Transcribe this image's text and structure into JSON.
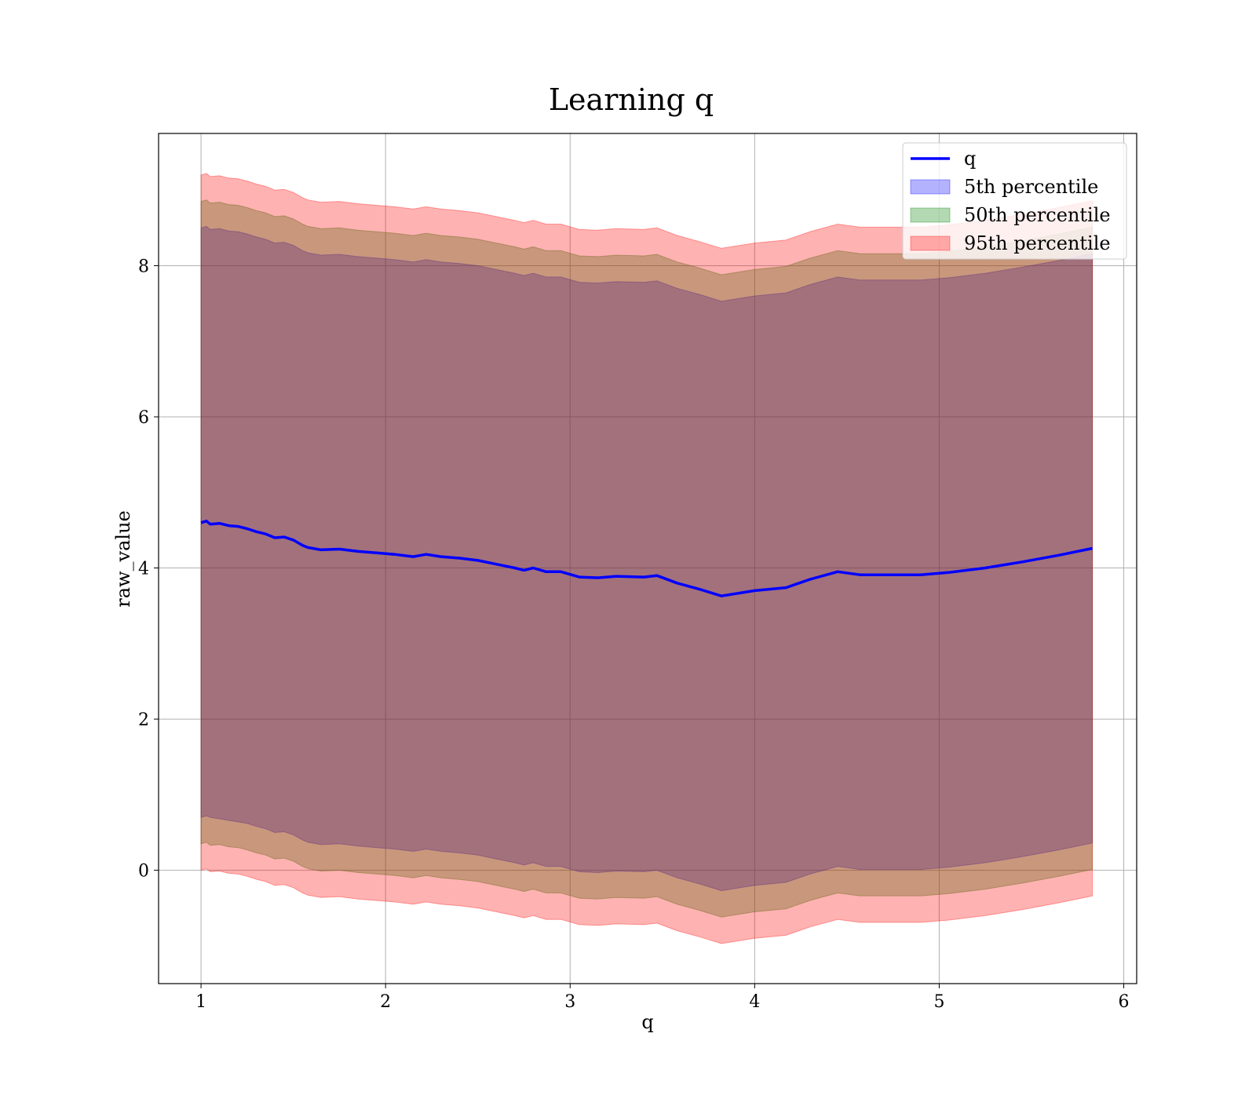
{
  "chart_data": {
    "type": "line",
    "title": "Learning q",
    "xlabel": "q",
    "ylabel": "raw_value",
    "xlim": [
      0.77,
      6.07
    ],
    "ylim": [
      -1.5,
      9.75
    ],
    "xticks": [
      1,
      2,
      3,
      4,
      5,
      6
    ],
    "yticks": [
      0,
      2,
      4,
      6,
      8
    ],
    "grid": true,
    "legend_position": "top-right",
    "colors": {
      "line": "#0000ff",
      "p5": "#0000ff",
      "p50": "#008000",
      "p95": "#ff0000",
      "grid": "#b0b0b0"
    },
    "x": [
      1.0,
      1.03,
      1.05,
      1.1,
      1.15,
      1.2,
      1.25,
      1.3,
      1.35,
      1.4,
      1.45,
      1.5,
      1.55,
      1.58,
      1.65,
      1.75,
      1.85,
      1.95,
      2.05,
      2.15,
      2.22,
      2.3,
      2.4,
      2.5,
      2.6,
      2.7,
      2.75,
      2.8,
      2.87,
      2.95,
      3.05,
      3.15,
      3.25,
      3.4,
      3.47,
      3.58,
      3.7,
      3.82,
      4.0,
      4.17,
      4.3,
      4.45,
      4.57,
      4.75,
      4.9,
      5.05,
      5.25,
      5.45,
      5.65,
      5.83
    ],
    "series": [
      {
        "name": "q",
        "values": [
          4.6,
          4.62,
          4.58,
          4.59,
          4.56,
          4.55,
          4.52,
          4.48,
          4.45,
          4.4,
          4.41,
          4.37,
          4.3,
          4.27,
          4.24,
          4.25,
          4.22,
          4.2,
          4.18,
          4.15,
          4.18,
          4.15,
          4.13,
          4.1,
          4.05,
          4.0,
          3.97,
          4.0,
          3.95,
          3.95,
          3.88,
          3.87,
          3.89,
          3.88,
          3.9,
          3.8,
          3.72,
          3.63,
          3.7,
          3.74,
          3.85,
          3.95,
          3.91,
          3.91,
          3.91,
          3.94,
          4.0,
          4.08,
          4.17,
          4.26
        ]
      },
      {
        "name": "5th percentile",
        "lower": [
          0.7,
          0.72,
          0.7,
          0.68,
          0.66,
          0.64,
          0.62,
          0.58,
          0.55,
          0.5,
          0.51,
          0.47,
          0.4,
          0.37,
          0.34,
          0.35,
          0.32,
          0.3,
          0.28,
          0.25,
          0.28,
          0.25,
          0.23,
          0.2,
          0.15,
          0.1,
          0.07,
          0.1,
          0.05,
          0.05,
          -0.02,
          -0.03,
          -0.01,
          -0.02,
          0.0,
          -0.1,
          -0.18,
          -0.27,
          -0.2,
          -0.16,
          -0.05,
          0.05,
          0.01,
          0.01,
          0.01,
          0.04,
          0.1,
          0.18,
          0.27,
          0.36
        ],
        "upper": [
          8.5,
          8.52,
          8.48,
          8.49,
          8.46,
          8.45,
          8.42,
          8.38,
          8.35,
          8.3,
          8.31,
          8.27,
          8.2,
          8.17,
          8.14,
          8.15,
          8.12,
          8.1,
          8.08,
          8.05,
          8.08,
          8.05,
          8.03,
          8.0,
          7.95,
          7.9,
          7.87,
          7.9,
          7.85,
          7.85,
          7.78,
          7.77,
          7.79,
          7.78,
          7.8,
          7.7,
          7.62,
          7.53,
          7.6,
          7.64,
          7.75,
          7.85,
          7.81,
          7.81,
          7.81,
          7.84,
          7.9,
          7.98,
          8.07,
          8.16
        ]
      },
      {
        "name": "50th percentile",
        "lower": [
          0.35,
          0.37,
          0.33,
          0.34,
          0.31,
          0.3,
          0.27,
          0.23,
          0.2,
          0.15,
          0.16,
          0.12,
          0.05,
          0.02,
          -0.01,
          0.0,
          -0.03,
          -0.05,
          -0.07,
          -0.1,
          -0.07,
          -0.1,
          -0.12,
          -0.15,
          -0.2,
          -0.25,
          -0.28,
          -0.25,
          -0.3,
          -0.3,
          -0.37,
          -0.38,
          -0.36,
          -0.37,
          -0.35,
          -0.45,
          -0.53,
          -0.62,
          -0.55,
          -0.51,
          -0.4,
          -0.3,
          -0.34,
          -0.34,
          -0.34,
          -0.31,
          -0.25,
          -0.17,
          -0.08,
          0.01
        ],
        "upper": [
          8.85,
          8.87,
          8.83,
          8.84,
          8.81,
          8.8,
          8.77,
          8.73,
          8.7,
          8.65,
          8.66,
          8.62,
          8.55,
          8.52,
          8.49,
          8.5,
          8.47,
          8.45,
          8.43,
          8.4,
          8.43,
          8.4,
          8.38,
          8.35,
          8.3,
          8.25,
          8.22,
          8.25,
          8.2,
          8.2,
          8.13,
          8.12,
          8.14,
          8.13,
          8.15,
          8.05,
          7.97,
          7.88,
          7.95,
          7.99,
          8.1,
          8.2,
          8.16,
          8.16,
          8.16,
          8.19,
          8.25,
          8.33,
          8.42,
          8.51
        ]
      },
      {
        "name": "95th percentile",
        "lower": [
          0.0,
          0.02,
          -0.02,
          -0.01,
          -0.04,
          -0.05,
          -0.08,
          -0.12,
          -0.15,
          -0.2,
          -0.19,
          -0.23,
          -0.3,
          -0.33,
          -0.36,
          -0.35,
          -0.38,
          -0.4,
          -0.42,
          -0.45,
          -0.42,
          -0.45,
          -0.47,
          -0.5,
          -0.55,
          -0.6,
          -0.63,
          -0.6,
          -0.65,
          -0.65,
          -0.72,
          -0.73,
          -0.71,
          -0.72,
          -0.7,
          -0.8,
          -0.88,
          -0.97,
          -0.9,
          -0.86,
          -0.75,
          -0.65,
          -0.69,
          -0.69,
          -0.69,
          -0.66,
          -0.6,
          -0.52,
          -0.43,
          -0.34
        ],
        "upper": [
          9.2,
          9.22,
          9.18,
          9.19,
          9.16,
          9.15,
          9.12,
          9.08,
          9.05,
          9.0,
          9.01,
          8.97,
          8.9,
          8.87,
          8.84,
          8.85,
          8.82,
          8.8,
          8.78,
          8.75,
          8.78,
          8.75,
          8.73,
          8.7,
          8.65,
          8.6,
          8.57,
          8.6,
          8.55,
          8.55,
          8.48,
          8.47,
          8.49,
          8.48,
          8.5,
          8.4,
          8.32,
          8.23,
          8.3,
          8.34,
          8.45,
          8.55,
          8.51,
          8.51,
          8.51,
          8.54,
          8.6,
          8.68,
          8.77,
          8.86
        ]
      }
    ]
  }
}
